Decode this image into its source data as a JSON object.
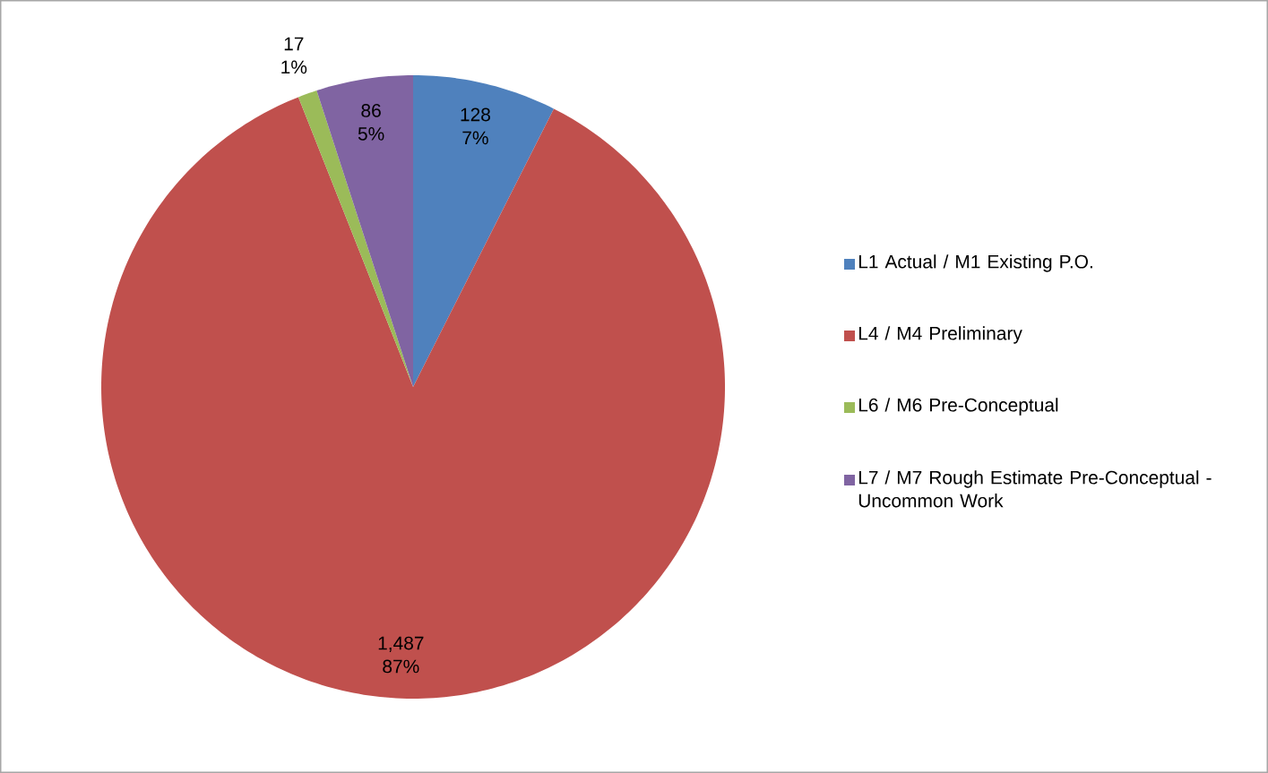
{
  "chart_data": {
    "type": "pie",
    "categories": [
      "L1 Actual / M1 Existing P.O.",
      "L4 / M4 Preliminary",
      "L6 / M6 Pre-Conceptual",
      "L7 / M7 Rough Estimate Pre-Conceptual - Uncommon Work"
    ],
    "values": [
      128,
      1487,
      17,
      86
    ],
    "colors": [
      "#4f81bd",
      "#c0504d",
      "#9bbb59",
      "#8064a2"
    ],
    "value_labels": [
      "128",
      "1,487",
      "17",
      "86"
    ],
    "annotations": [
      "7%",
      "87%",
      "1%",
      "5%"
    ],
    "legend": "right"
  }
}
